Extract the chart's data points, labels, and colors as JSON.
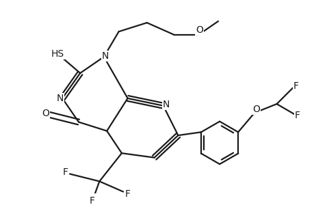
{
  "background_color": "#ffffff",
  "line_color": "#1a1a1a",
  "line_width": 1.6,
  "font_size": 10,
  "figsize": [
    4.6,
    3.0
  ],
  "dpi": 100,
  "xlim": [
    0,
    10
  ],
  "ylim": [
    0,
    6.5
  ]
}
